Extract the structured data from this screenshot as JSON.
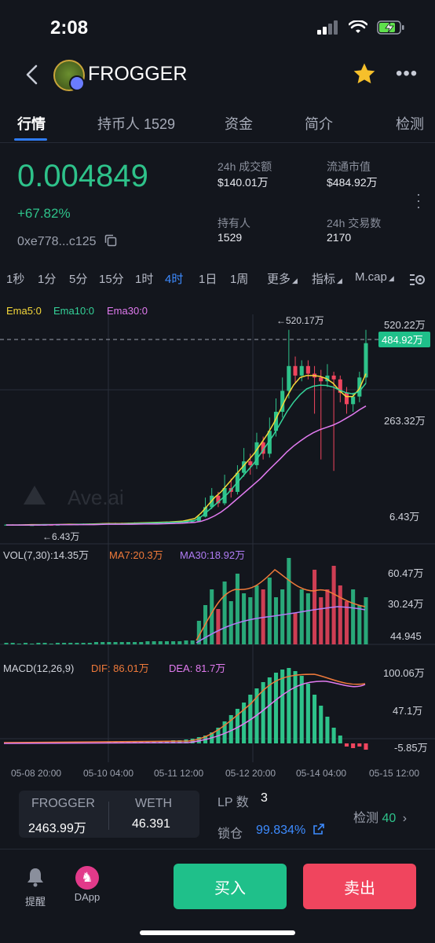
{
  "status": {
    "time": "2:08"
  },
  "header": {
    "token_name": "FROGGER"
  },
  "tabs": [
    {
      "label": "行情",
      "active": true
    },
    {
      "label": "持币人 1529"
    },
    {
      "label": "资金"
    },
    {
      "label": "简介"
    },
    {
      "label": "检测"
    }
  ],
  "price": {
    "value": "0.004849",
    "change": "+67.82%",
    "address": "0xe778...c125"
  },
  "stats": {
    "vol_label": "24h 成交额",
    "vol_value": "$140.01万",
    "mcap_label": "流通市值",
    "mcap_value": "$484.92万",
    "holders_label": "持有人",
    "holders_value": "1529",
    "tx_label": "24h 交易数",
    "tx_value": "2170"
  },
  "timeframes": [
    "1秒",
    "1分",
    "5分",
    "15分",
    "1时",
    "4时",
    "1日",
    "1周",
    "更多",
    "指标",
    "M.cap"
  ],
  "active_timeframe": "4时",
  "chart": {
    "ema_legend": {
      "ema5": "Ema5:0",
      "ema10": "Ema10:0",
      "ema30": "Ema30:0"
    },
    "high_marker": "←520.17万",
    "low_marker": "←6.43万",
    "price_axis": [
      "520.22万",
      "263.32万",
      "6.43万"
    ],
    "current_price_tag": "484.92万",
    "watermark": "Ave.ai",
    "vol_legend": {
      "vol": "VOL(7,30):14.35万",
      "ma7": "MA7:20.3万",
      "ma30": "MA30:18.92万"
    },
    "vol_axis": [
      "60.47万",
      "30.24万",
      "44.945"
    ],
    "macd_legend": {
      "macd": "MACD(12,26,9)",
      "dif": "DIF: 86.01万",
      "dea": "DEA: 81.7万"
    },
    "macd_axis": [
      "100.06万",
      "47.1万",
      "-5.85万"
    ],
    "date_axis": [
      "05-08 20:00",
      "05-10 04:00",
      "05-11 12:00",
      "05-12 20:00",
      "05-14 04:00",
      "05-15 12:00"
    ],
    "colors": {
      "up": "#2ec28a",
      "down": "#f0455e",
      "ema5": "#f5d83a",
      "ema10": "#34d399",
      "ema30": "#e27bf0",
      "ma7": "#f07a3a",
      "ma30": "#b07cf5"
    }
  },
  "chart_data": {
    "type": "candlestick",
    "unit": "万",
    "x_ticks": [
      "05-08 20:00",
      "05-10 04:00",
      "05-11 12:00",
      "05-12 20:00",
      "05-14 04:00",
      "05-15 12:00"
    ],
    "y_ticks": [
      6.43,
      263.32,
      520.22
    ],
    "high": 520.17,
    "low": 6.43,
    "last": 484.92,
    "candles": [
      [
        8,
        9,
        7,
        10
      ],
      [
        9,
        8,
        7,
        10
      ],
      [
        8,
        9,
        7,
        10
      ],
      [
        9,
        8,
        7,
        10
      ],
      [
        8,
        8,
        7,
        9
      ],
      [
        8,
        9,
        7,
        10
      ],
      [
        9,
        9,
        8,
        10
      ],
      [
        9,
        8,
        7,
        10
      ],
      [
        8,
        9,
        7,
        10
      ],
      [
        9,
        10,
        8,
        11
      ],
      [
        10,
        9,
        8,
        11
      ],
      [
        9,
        10,
        8,
        11
      ],
      [
        10,
        11,
        9,
        12
      ],
      [
        11,
        10,
        9,
        12
      ],
      [
        10,
        11,
        9,
        12
      ],
      [
        11,
        12,
        10,
        13
      ],
      [
        12,
        12,
        11,
        14
      ],
      [
        12,
        13,
        11,
        14
      ],
      [
        13,
        12,
        11,
        14
      ],
      [
        12,
        13,
        11,
        14
      ],
      [
        13,
        14,
        12,
        15
      ],
      [
        14,
        13,
        12,
        15
      ],
      [
        13,
        14,
        12,
        15
      ],
      [
        14,
        14,
        13,
        15
      ],
      [
        14,
        15,
        13,
        16
      ],
      [
        15,
        15,
        14,
        17
      ],
      [
        15,
        16,
        14,
        17
      ],
      [
        16,
        16,
        15,
        17
      ],
      [
        16,
        17,
        15,
        18
      ],
      [
        17,
        18,
        16,
        19
      ],
      [
        18,
        30,
        16,
        34
      ],
      [
        30,
        55,
        28,
        80
      ],
      [
        55,
        85,
        50,
        105
      ],
      [
        85,
        65,
        55,
        95
      ],
      [
        65,
        105,
        60,
        140
      ],
      [
        105,
        95,
        80,
        130
      ],
      [
        95,
        145,
        88,
        165
      ],
      [
        145,
        175,
        135,
        210
      ],
      [
        175,
        165,
        140,
        195
      ],
      [
        165,
        225,
        155,
        250
      ],
      [
        225,
        195,
        180,
        240
      ],
      [
        195,
        255,
        185,
        290
      ],
      [
        255,
        305,
        240,
        340
      ],
      [
        305,
        360,
        290,
        395
      ],
      [
        360,
        425,
        340,
        520
      ],
      [
        425,
        400,
        380,
        450
      ],
      [
        400,
        425,
        385,
        440
      ],
      [
        425,
        405,
        390,
        440
      ],
      [
        405,
        395,
        300,
        425
      ],
      [
        395,
        385,
        180,
        415
      ],
      [
        385,
        400,
        370,
        430
      ],
      [
        400,
        390,
        150,
        410
      ],
      [
        390,
        355,
        330,
        400
      ],
      [
        355,
        325,
        300,
        370
      ],
      [
        325,
        345,
        305,
        355
      ],
      [
        345,
        395,
        330,
        410
      ],
      [
        395,
        485,
        380,
        520
      ]
    ],
    "ema_series": [
      {
        "name": "Ema5",
        "values": [
          8,
          8,
          9,
          9,
          9,
          10,
          10,
          11,
          12,
          12,
          13,
          14,
          15,
          16,
          18,
          25,
          40,
          60,
          80,
          95,
          115,
          135,
          155,
          175,
          195,
          220,
          245,
          275,
          310,
          345,
          375,
          395,
          400,
          400,
          398,
          392,
          380,
          360,
          345,
          345,
          365,
          405
        ]
      },
      {
        "name": "Ema10",
        "values": [
          8,
          8,
          8,
          9,
          9,
          9,
          10,
          10,
          11,
          11,
          12,
          13,
          14,
          15,
          16,
          20,
          30,
          45,
          60,
          75,
          90,
          110,
          130,
          150,
          170,
          195,
          220,
          245,
          275,
          305,
          330,
          350,
          365,
          372,
          375,
          374,
          370,
          362,
          355,
          352,
          358,
          380
        ]
      },
      {
        "name": "Ema30",
        "values": [
          8,
          8,
          8,
          8,
          9,
          9,
          9,
          9,
          10,
          10,
          10,
          11,
          11,
          12,
          13,
          15,
          18,
          24,
          32,
          42,
          55,
          70,
          85,
          100,
          115,
          130,
          148,
          165,
          182,
          200,
          215,
          228,
          240,
          250,
          258,
          264,
          270,
          278,
          288,
          298,
          310,
          320
        ]
      }
    ],
    "vol_ticks": [
      44.945,
      302400,
      604700
    ],
    "vol_bars_up": [
      true,
      true,
      true,
      true,
      true,
      true,
      true,
      true,
      true,
      true,
      true,
      true,
      true,
      true,
      true,
      true,
      true,
      true,
      true,
      true,
      true,
      true,
      true,
      true,
      true,
      true,
      true,
      true,
      true,
      true,
      true,
      true,
      true,
      false,
      true,
      true,
      true,
      true,
      true,
      true,
      false,
      true,
      true,
      true,
      true,
      false,
      true,
      true,
      false,
      false,
      false,
      false,
      false,
      false,
      true,
      true,
      true
    ],
    "macd_ticks": [
      -5.85,
      47.1,
      100.06
    ],
    "macd_dif": 86.01,
    "macd_dea": 81.7
  },
  "bottom": {
    "pair_base_label": "FROGGER",
    "pair_base_value": "2463.99万",
    "pair_quote_label": "WETH",
    "pair_quote_value": "46.391",
    "lp_label": "LP 数",
    "lp_value": "3",
    "lock_label": "锁仓",
    "lock_value": "99.834%",
    "check_label": "检测",
    "check_value": "40",
    "nav_alert": "提醒",
    "nav_dapp": "DApp",
    "buy_label": "买入",
    "sell_label": "卖出"
  }
}
